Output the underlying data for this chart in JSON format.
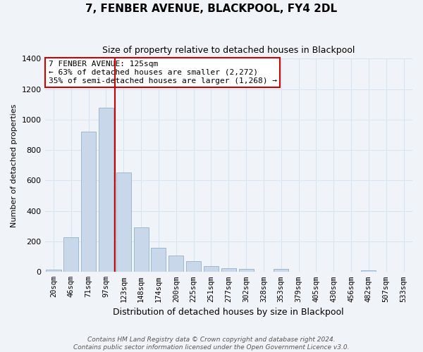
{
  "title": "7, FENBER AVENUE, BLACKPOOL, FY4 2DL",
  "subtitle": "Size of property relative to detached houses in Blackpool",
  "xlabel": "Distribution of detached houses by size in Blackpool",
  "ylabel": "Number of detached properties",
  "bar_labels": [
    "20sqm",
    "46sqm",
    "71sqm",
    "97sqm",
    "123sqm",
    "148sqm",
    "174sqm",
    "200sqm",
    "225sqm",
    "251sqm",
    "277sqm",
    "302sqm",
    "328sqm",
    "353sqm",
    "379sqm",
    "405sqm",
    "430sqm",
    "456sqm",
    "482sqm",
    "507sqm",
    "533sqm"
  ],
  "bar_values": [
    15,
    228,
    920,
    1080,
    655,
    292,
    158,
    107,
    70,
    40,
    25,
    20,
    0,
    18,
    0,
    0,
    0,
    0,
    12,
    0,
    0
  ],
  "bar_color": "#c8d8ea",
  "bar_edge_color": "#9ab8d0",
  "vline_color": "#cc0000",
  "annotation_title": "7 FENBER AVENUE: 125sqm",
  "annotation_line1": "← 63% of detached houses are smaller (2,272)",
  "annotation_line2": "35% of semi-detached houses are larger (1,268) →",
  "annotation_box_facecolor": "#ffffff",
  "annotation_box_edgecolor": "#cc0000",
  "ylim": [
    0,
    1400
  ],
  "yticks": [
    0,
    200,
    400,
    600,
    800,
    1000,
    1200,
    1400
  ],
  "grid_color": "#d8e4f0",
  "bg_color": "#f0f4f8",
  "footnote1": "Contains HM Land Registry data © Crown copyright and database right 2024.",
  "footnote2": "Contains public sector information licensed under the Open Government Licence v3.0.",
  "title_fontsize": 11,
  "subtitle_fontsize": 9,
  "xlabel_fontsize": 9,
  "ylabel_fontsize": 8,
  "tick_fontsize": 7.5,
  "annotation_fontsize": 8,
  "footnote_fontsize": 6.5
}
